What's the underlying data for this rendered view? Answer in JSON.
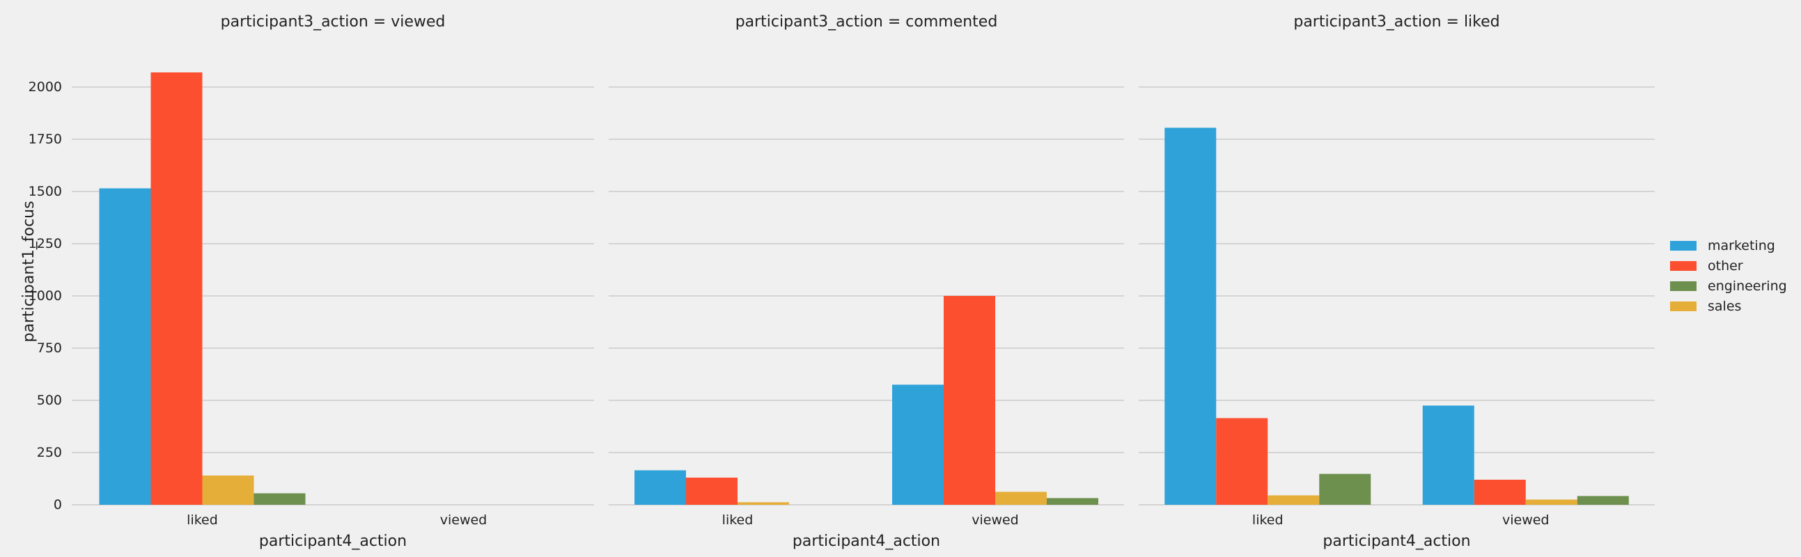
{
  "chart_data": {
    "type": "bar",
    "ylabel": "participant1_focus",
    "xlabel": "participant4_action",
    "ylim": [
      0,
      2150
    ],
    "yticks": [
      0,
      250,
      500,
      750,
      1000,
      1250,
      1500,
      1750,
      2000
    ],
    "grid": true,
    "legend_position": "right",
    "colors": {
      "marketing": "#30a2da",
      "other": "#fc4f30",
      "engineering": "#6d904f",
      "sales": "#e5ae38",
      "background": "#f0f0f0",
      "grid": "#cbcbcb"
    },
    "legend": [
      "marketing",
      "other",
      "engineering",
      "sales"
    ],
    "hue_order": [
      "marketing",
      "other",
      "sales",
      "engineering"
    ],
    "categories": [
      "liked",
      "viewed"
    ],
    "panels": [
      {
        "title": "participant3_action = viewed",
        "series": [
          {
            "name": "marketing",
            "values": [
              1515,
              null
            ]
          },
          {
            "name": "other",
            "values": [
              2070,
              null
            ]
          },
          {
            "name": "sales",
            "values": [
              140,
              null
            ]
          },
          {
            "name": "engineering",
            "values": [
              55,
              null
            ]
          }
        ]
      },
      {
        "title": "participant3_action = commented",
        "series": [
          {
            "name": "marketing",
            "values": [
              165,
              575
            ]
          },
          {
            "name": "other",
            "values": [
              130,
              1000
            ]
          },
          {
            "name": "sales",
            "values": [
              12,
              62
            ]
          },
          {
            "name": "engineering",
            "values": [
              null,
              32
            ]
          }
        ]
      },
      {
        "title": "participant3_action = liked",
        "series": [
          {
            "name": "marketing",
            "values": [
              1805,
              475
            ]
          },
          {
            "name": "other",
            "values": [
              415,
              120
            ]
          },
          {
            "name": "sales",
            "values": [
              45,
              25
            ]
          },
          {
            "name": "engineering",
            "values": [
              148,
              42
            ]
          }
        ]
      }
    ]
  }
}
